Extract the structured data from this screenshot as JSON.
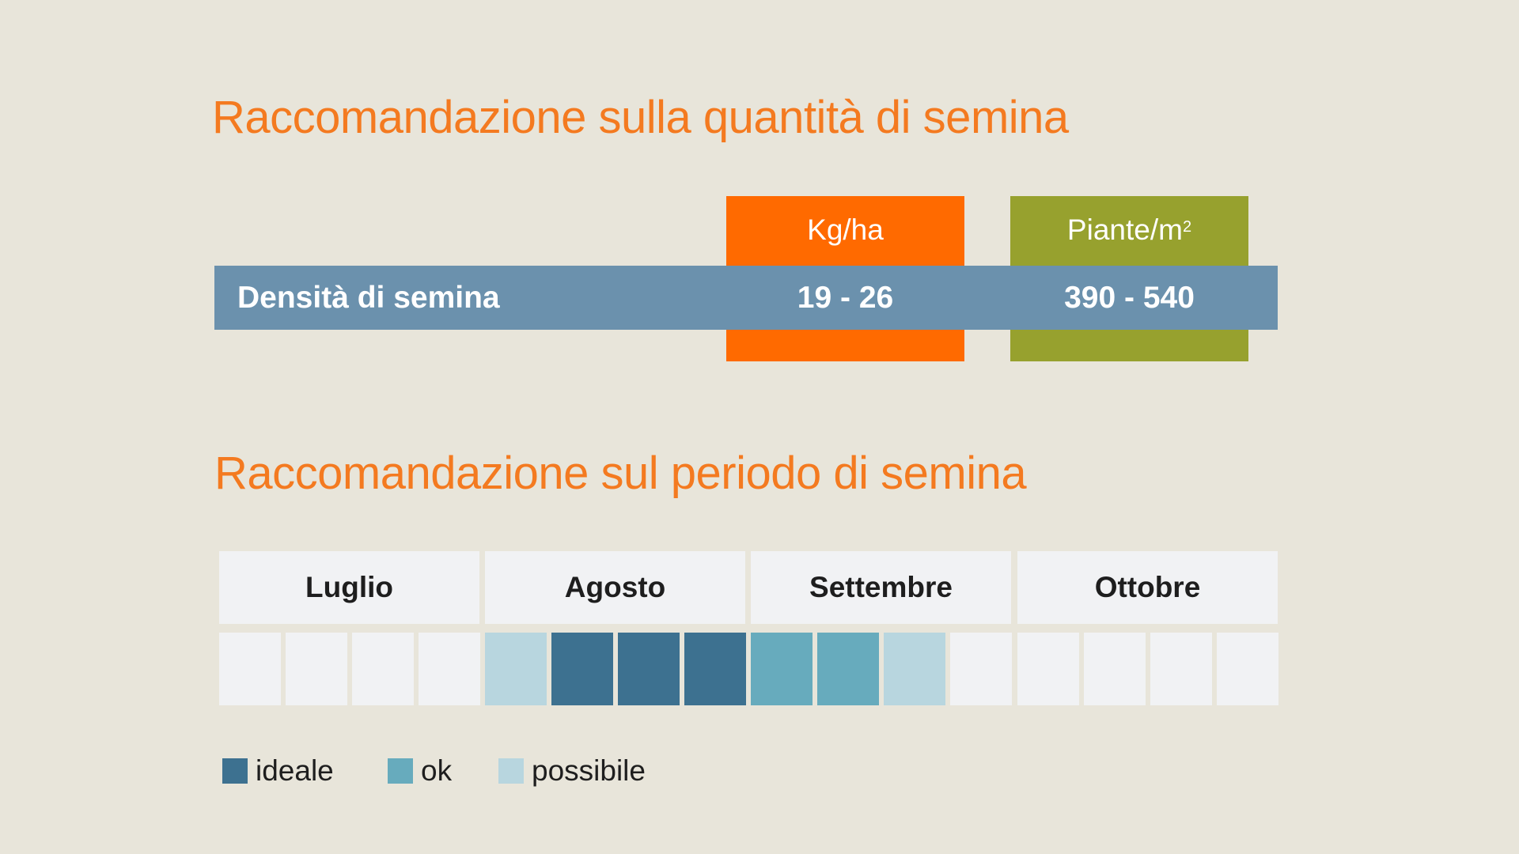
{
  "sections": {
    "quantity_title": "Raccomandazione sulla quantità di semina",
    "period_title": "Raccomandazione sul periodo di semina"
  },
  "quantity_table": {
    "columns": [
      {
        "label": "Kg/ha",
        "color": "#ff6a00"
      },
      {
        "label_base": "Piante/m",
        "label_sup": "2",
        "color": "#97a12e"
      }
    ],
    "row": {
      "label": "Densità di semina",
      "values": [
        "19 - 26",
        "390 - 540"
      ],
      "color": "#6b91ad"
    }
  },
  "calendar": {
    "months": [
      "Luglio",
      "Agosto",
      "Settembre",
      "Ottobre"
    ],
    "weeks_per_month": 4,
    "week_status": [
      "none",
      "none",
      "none",
      "none",
      "possibile",
      "ideale",
      "ideale",
      "ideale",
      "ok",
      "ok",
      "possibile",
      "none",
      "none",
      "none",
      "none",
      "none"
    ],
    "colors": {
      "ideale": "#3d7190",
      "ok": "#67abbd",
      "possibile": "#b8d6df",
      "none": "#f1f2f4"
    }
  },
  "legend": [
    {
      "key": "ideale",
      "label": "ideale"
    },
    {
      "key": "ok",
      "label": "ok"
    },
    {
      "key": "possibile",
      "label": "possibile"
    }
  ]
}
